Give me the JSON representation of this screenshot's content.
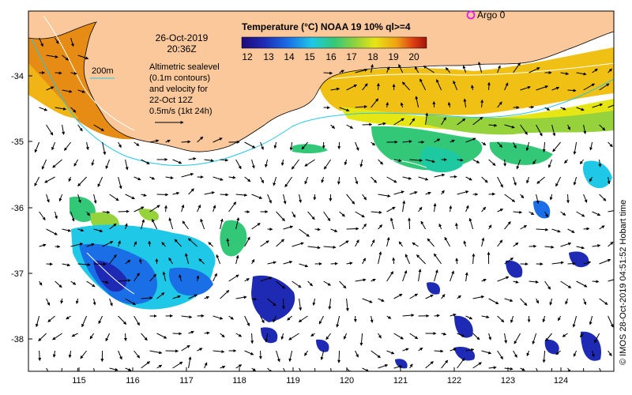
{
  "colorbar": {
    "title": "Temperature (°C) NOAA 19 10% ql>=4",
    "ticks": [
      "12",
      "13",
      "14",
      "15",
      "16",
      "17",
      "18",
      "19",
      "20"
    ]
  },
  "info": {
    "date": "26-Oct-2019",
    "time": "20:36Z",
    "line1": "Altimetric sealevel",
    "line2": "(0.1m contours)",
    "line3": "and velocity for",
    "line4": "22-Oct 12Z",
    "line5": "0.5m/s (1kt 24h)"
  },
  "isobath_label": "200m",
  "argo_label": "Argo 0",
  "credit": "© IMOS 28-Oct-2019 04:51:52 Hobart time",
  "axes": {
    "lat_ticks": [
      "-34",
      "-35",
      "-36",
      "-37",
      "-38"
    ],
    "lon_ticks": [
      "115",
      "116",
      "117",
      "118",
      "119",
      "120",
      "121",
      "122",
      "123",
      "124"
    ]
  },
  "colors": {
    "land": "#fac89a",
    "isobath": "#22c8e6",
    "argo": "#e61ee6",
    "ocean": "#ffffff"
  }
}
